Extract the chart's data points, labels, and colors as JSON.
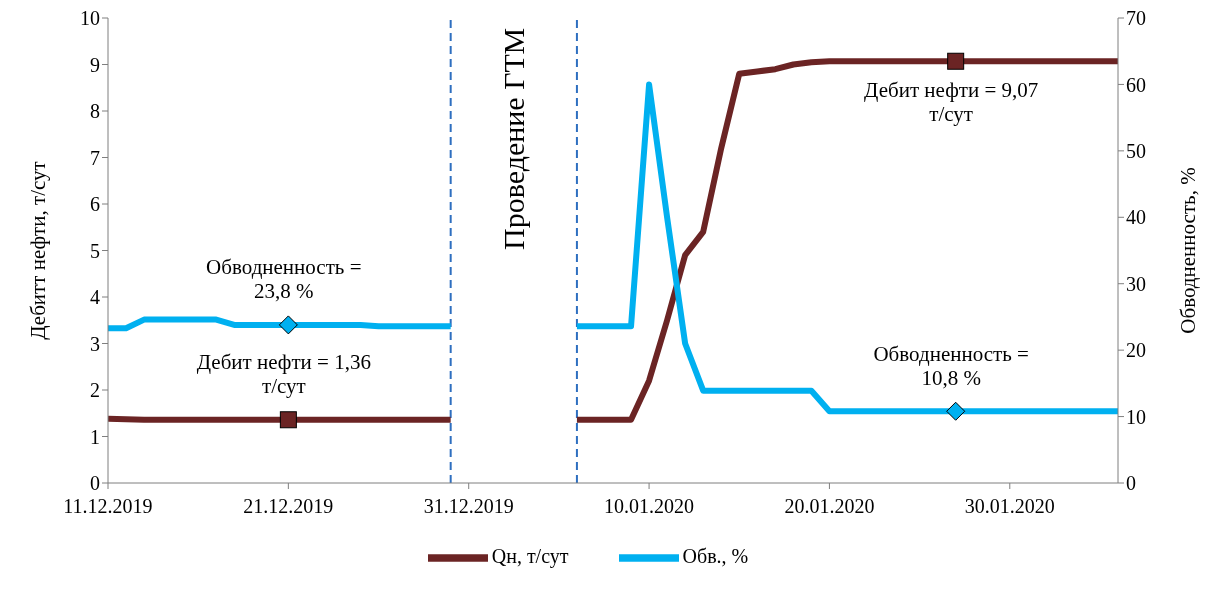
{
  "chart_data": {
    "type": "line",
    "ylabel": "Дебитт нефти, т/сут",
    "y2label": "Обводненность, %",
    "xlim": [
      "2019-12-11",
      "2020-02-05"
    ],
    "xticks": [
      {
        "value": "2019-12-11",
        "label": "11.12.2019"
      },
      {
        "value": "2019-12-21",
        "label": "21.12.2019"
      },
      {
        "value": "2019-12-31",
        "label": "31.12.2019"
      },
      {
        "value": "2020-01-10",
        "label": "10.01.2020"
      },
      {
        "value": "2020-01-20",
        "label": "20.01.2020"
      },
      {
        "value": "2020-01-30",
        "label": "30.01.2020"
      }
    ],
    "ylim": [
      0,
      10
    ],
    "yticks": [
      0,
      1,
      2,
      3,
      4,
      5,
      6,
      7,
      8,
      9,
      10
    ],
    "y2lim": [
      0,
      70
    ],
    "y2ticks": [
      0,
      10,
      20,
      30,
      40,
      50,
      60,
      70
    ],
    "grid": false,
    "legend": "bottom",
    "line_style": "solid",
    "marker": "none",
    "series": [
      {
        "name": "Qн, т/сут",
        "color": "#6b2424",
        "x": [
          "2019-12-11",
          "2019-12-13",
          "2019-12-30",
          "2020-01-03",
          "2020-01-06",
          "2020-01-09",
          "2020-01-10",
          "2020-01-11",
          "2020-01-12",
          "2020-01-13",
          "2020-01-14",
          "2020-01-15",
          "2020-01-16",
          "2020-01-17",
          "2020-01-18",
          "2020-01-19",
          "2020-01-20",
          "2020-02-05"
        ],
        "values": [
          1.38,
          1.36,
          1.36,
          null,
          1.36,
          1.36,
          2.2,
          3.5,
          4.9,
          5.4,
          7.2,
          8.8,
          8.85,
          8.9,
          9.0,
          9.05,
          9.07,
          9.07
        ]
      },
      {
        "name": "Обв., %",
        "color": "#00b0f0",
        "axis": "y2",
        "x": [
          "2019-12-11",
          "2019-12-12",
          "2019-12-13",
          "2019-12-17",
          "2019-12-18",
          "2019-12-25",
          "2019-12-26",
          "2019-12-30",
          "2020-01-03",
          "2020-01-06",
          "2020-01-09",
          "2020-01-10",
          "2020-01-11",
          "2020-01-12",
          "2020-01-13",
          "2020-01-19",
          "2020-01-20",
          "2020-02-05"
        ],
        "values": [
          23.3,
          23.3,
          24.6,
          24.6,
          23.8,
          23.8,
          23.6,
          23.6,
          null,
          23.6,
          23.6,
          60,
          40,
          21,
          13.9,
          13.9,
          10.8,
          10.8
        ]
      },
      {
        "type": "scatter",
        "marker": "square",
        "color": "#6b2424",
        "x": [
          "2019-12-21",
          "2020-01-27"
        ],
        "values": [
          1.36,
          9.07
        ],
        "value_labels": [
          "Дебит нефти = 1,36 т/сут",
          "Дебит нефти = 9,07 т/сут"
        ]
      },
      {
        "type": "scatter",
        "marker": "diamond",
        "color": "#00b0f0",
        "axis": "y2",
        "x": [
          "2019-12-21",
          "2020-01-27"
        ],
        "values": [
          23.8,
          10.8
        ],
        "value_labels": [
          "Обводненность = 23,8 %",
          "Обводненность = 10,8 %"
        ]
      }
    ],
    "ref_lines": [
      {
        "axis": "x",
        "value": "2019-12-30",
        "label": null,
        "color": "#2e6fc0",
        "line_style": "dashed"
      },
      {
        "axis": "x",
        "value": "2020-01-06",
        "label": null,
        "color": "#2e6fc0",
        "line_style": "dashed"
      }
    ],
    "annotations": [
      "Проведение ГТМ"
    ]
  }
}
